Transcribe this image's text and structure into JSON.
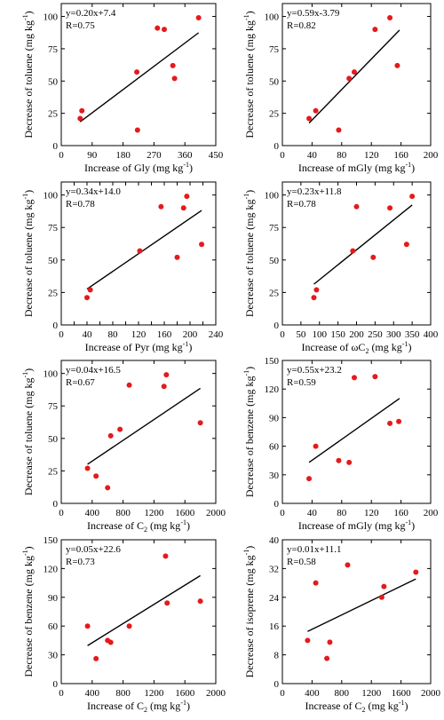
{
  "chart_data": [
    {
      "type": "scatter",
      "xlabel_main": "Increase of Gly",
      "xlabel_sub": "",
      "xlabel_unit": " (mg kg",
      "xlabel_sup": "-1",
      "xlabel_close": ")",
      "ylabel_main": "Decrease of toluene (mg kg",
      "ylabel_sup": "-1",
      "ylabel_close": ")",
      "equation": "y=0.20x+7.4",
      "r_label": "R=0.75",
      "xlim": [
        0,
        450
      ],
      "ylim": [
        0,
        110
      ],
      "xticks": [
        0,
        90,
        180,
        270,
        360,
        450
      ],
      "yticks": [
        0,
        25,
        50,
        75,
        100
      ],
      "fit": {
        "slope": 0.2,
        "intercept": 7.4,
        "x_range": [
          55,
          400
        ]
      },
      "points": [
        [
          55,
          21
        ],
        [
          60,
          27
        ],
        [
          220,
          57
        ],
        [
          222,
          12
        ],
        [
          280,
          91
        ],
        [
          300,
          90
        ],
        [
          325,
          62
        ],
        [
          330,
          52
        ],
        [
          400,
          99
        ]
      ]
    },
    {
      "type": "scatter",
      "xlabel_main": "Increase of mGly",
      "xlabel_sub": "",
      "xlabel_unit": " (mg kg",
      "xlabel_sup": "-1",
      "xlabel_close": ")",
      "ylabel_main": "Decrease of toluene (mg kg",
      "ylabel_sup": "-1",
      "ylabel_close": ")",
      "equation": "y=0.59x-3.79",
      "r_label": "R=0.82",
      "xlim": [
        0,
        200
      ],
      "ylim": [
        0,
        110
      ],
      "xticks": [
        0,
        40,
        80,
        120,
        160,
        200
      ],
      "yticks": [
        0,
        25,
        50,
        75,
        100
      ],
      "fit": {
        "slope": 0.59,
        "intercept": -3.79,
        "x_range": [
          36,
          158
        ]
      },
      "points": [
        [
          36,
          21
        ],
        [
          45,
          27
        ],
        [
          76,
          12
        ],
        [
          90,
          52
        ],
        [
          97,
          57
        ],
        [
          125,
          90
        ],
        [
          145,
          99
        ],
        [
          155,
          62
        ]
      ]
    },
    {
      "type": "scatter",
      "xlabel_main": "Increase of Pyr",
      "xlabel_sub": "",
      "xlabel_unit": " (mg kg",
      "xlabel_sup": "-1",
      "xlabel_close": ")",
      "ylabel_main": "Decrease of toluene (mg kg",
      "ylabel_sup": "-1",
      "ylabel_close": ")",
      "equation": "y=0.34x+14.0",
      "r_label": "R=0.78",
      "xlim": [
        0,
        240
      ],
      "ylim": [
        0,
        110
      ],
      "xticks": [
        0,
        20,
        40,
        60,
        80,
        100,
        120,
        140,
        160,
        180,
        200,
        220,
        240
      ],
      "yticks": [
        0,
        25,
        50,
        75,
        100
      ],
      "fit": {
        "slope": 0.34,
        "intercept": 14.0,
        "x_range": [
          40,
          218
        ]
      },
      "points": [
        [
          40,
          21
        ],
        [
          45,
          27
        ],
        [
          122,
          57
        ],
        [
          155,
          91
        ],
        [
          180,
          52
        ],
        [
          190,
          90
        ],
        [
          195,
          99
        ],
        [
          218,
          62
        ]
      ]
    },
    {
      "type": "scatter",
      "xlabel_main": "Increase of ",
      "xlabel_sub": "",
      "xlabel_greek": "ω",
      "xlabel_c": "C",
      "xlabel_csub": "2",
      "xlabel_unit": " (mg kg",
      "xlabel_sup": "-1",
      "xlabel_close": ")",
      "ylabel_main": "Decrease of toluene (mg kg",
      "ylabel_sup": "-1",
      "ylabel_close": ")",
      "equation": "y=0.23x+11.8",
      "r_label": "R=0.78",
      "xlim": [
        0,
        400
      ],
      "ylim": [
        0,
        110
      ],
      "xticks": [
        0,
        50,
        100,
        150,
        200,
        250,
        300,
        350,
        400
      ],
      "yticks": [
        0,
        25,
        50,
        75,
        100
      ],
      "fit": {
        "slope": 0.23,
        "intercept": 11.8,
        "x_range": [
          85,
          350
        ]
      },
      "points": [
        [
          85,
          21
        ],
        [
          92,
          27
        ],
        [
          190,
          57
        ],
        [
          200,
          91
        ],
        [
          245,
          52
        ],
        [
          290,
          90
        ],
        [
          335,
          62
        ],
        [
          350,
          99
        ]
      ]
    },
    {
      "type": "scatter",
      "xlabel_main": "Increase of C",
      "xlabel_sub": "2",
      "xlabel_unit": " (mg kg",
      "xlabel_sup": "-1",
      "xlabel_close": ")",
      "ylabel_main": "Decrease of toluene (mg kg",
      "ylabel_sup": "-1",
      "ylabel_close": ")",
      "equation": "y=0.04x+16.5",
      "r_label": "R=0.67",
      "xlim": [
        0,
        2000
      ],
      "ylim": [
        0,
        110
      ],
      "xticks": [
        0,
        400,
        800,
        1200,
        1600,
        2000
      ],
      "yticks": [
        0,
        25,
        50,
        75,
        100
      ],
      "fit": {
        "slope": 0.04,
        "intercept": 16.5,
        "x_range": [
          340,
          1800
        ]
      },
      "points": [
        [
          340,
          27
        ],
        [
          450,
          21
        ],
        [
          600,
          12
        ],
        [
          640,
          52
        ],
        [
          760,
          57
        ],
        [
          880,
          91
        ],
        [
          1330,
          90
        ],
        [
          1360,
          99
        ],
        [
          1800,
          62
        ]
      ]
    },
    {
      "type": "scatter",
      "xlabel_main": "Increase of mGly",
      "xlabel_sub": "",
      "xlabel_unit": " (mg kg",
      "xlabel_sup": "-1",
      "xlabel_close": ")",
      "ylabel_main": "Decrease of benzene (mg kg",
      "ylabel_sup": "-1",
      "ylabel_close": ")",
      "equation": "y=0.55x+23.2",
      "r_label": "R=0.59",
      "xlim": [
        0,
        200
      ],
      "ylim": [
        0,
        150
      ],
      "xticks": [
        0,
        40,
        80,
        120,
        160,
        200
      ],
      "yticks": [
        0,
        30,
        60,
        90,
        120,
        150
      ],
      "fit": {
        "slope": 0.55,
        "intercept": 23.2,
        "x_range": [
          36,
          158
        ]
      },
      "points": [
        [
          36,
          26
        ],
        [
          45,
          60
        ],
        [
          76,
          45
        ],
        [
          90,
          43
        ],
        [
          97,
          132
        ],
        [
          125,
          133
        ],
        [
          145,
          84
        ],
        [
          157,
          86
        ]
      ]
    },
    {
      "type": "scatter",
      "xlabel_main": "Increase of C",
      "xlabel_sub": "2",
      "xlabel_unit": " (mg kg",
      "xlabel_sup": "-1",
      "xlabel_close": ")",
      "ylabel_main": "Decrease of benzene (mg kg",
      "ylabel_sup": "-1",
      "ylabel_close": ")",
      "equation": "y=0.05x+22.6",
      "r_label": "R=0.73",
      "xlim": [
        0,
        2000
      ],
      "ylim": [
        0,
        150
      ],
      "xticks": [
        0,
        400,
        800,
        1200,
        1600,
        2000
      ],
      "yticks": [
        0,
        30,
        60,
        90,
        120,
        150
      ],
      "fit": {
        "slope": 0.05,
        "intercept": 22.6,
        "x_range": [
          340,
          1800
        ]
      },
      "points": [
        [
          340,
          60
        ],
        [
          450,
          26
        ],
        [
          600,
          45
        ],
        [
          640,
          43
        ],
        [
          880,
          60
        ],
        [
          1350,
          133
        ],
        [
          1370,
          84
        ],
        [
          1800,
          86
        ]
      ]
    },
    {
      "type": "scatter",
      "xlabel_main": "Increase of C",
      "xlabel_sub": "2",
      "xlabel_unit": " (mg kg",
      "xlabel_sup": "-1",
      "xlabel_close": ")",
      "ylabel_main": "Decrease of isoprene (mg kg",
      "ylabel_sup": "-1",
      "ylabel_close": ")",
      "equation": "y=0.01x+11.1",
      "r_label": "R=0.58",
      "xlim": [
        0,
        2000
      ],
      "ylim": [
        0,
        40
      ],
      "xticks": [
        0,
        400,
        800,
        1200,
        1600,
        2000
      ],
      "yticks": [
        0,
        8,
        16,
        24,
        32,
        40
      ],
      "fit": {
        "slope": 0.01,
        "intercept": 11.1,
        "x_range": [
          340,
          1800
        ]
      },
      "points": [
        [
          340,
          12
        ],
        [
          450,
          28
        ],
        [
          600,
          7
        ],
        [
          640,
          11.5
        ],
        [
          880,
          33
        ],
        [
          1340,
          24
        ],
        [
          1370,
          27
        ],
        [
          1800,
          31
        ]
      ]
    }
  ]
}
